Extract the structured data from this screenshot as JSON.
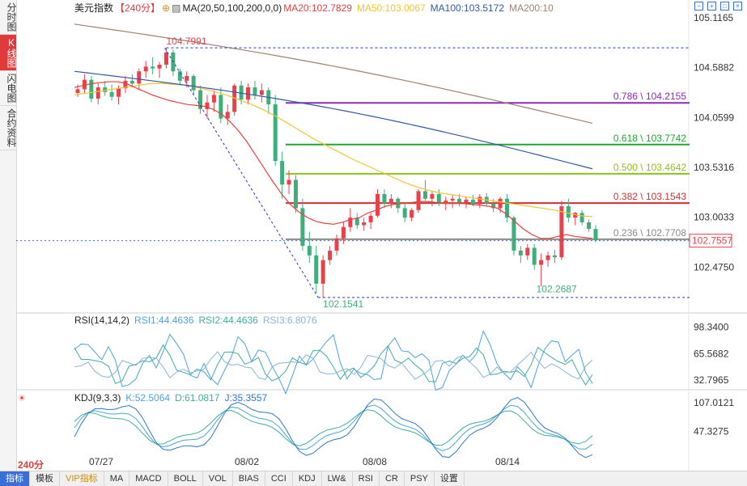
{
  "sidebar": {
    "tabs": [
      "分时图",
      "K线图",
      "闪电图",
      "合约资料"
    ],
    "active": 1
  },
  "header": {
    "symbol": "美元指数",
    "period_tag": "【240分】",
    "ma_label": "MA(20,50,100,200,0,0)",
    "ma20": "MA20:102.7829",
    "ma50": "MA50:103.0067",
    "ma100": "MA100:103.5172",
    "ma200": "MA200:10",
    "colors": {
      "ma20": "#e8413f",
      "ma50": "#f4c430",
      "ma100": "#2f5aa8",
      "ma200": "#a08070"
    }
  },
  "rsi_header": {
    "name": "RSI(14,14,2)",
    "rsi1": "RSI1:44.4636",
    "rsi2": "RSI2:44.4636",
    "rsi3": "RSI3:6.8076"
  },
  "kdj_header": {
    "name": "KDJ(9,3,3)",
    "k": "K:52.5064",
    "d": "D:61.0817",
    "j": "J:35.3557"
  },
  "period_button": "240分",
  "bottom_tabs": [
    "指标",
    "模板",
    "VIP指标",
    "MA",
    "MACD",
    "BOLL",
    "VOL",
    "BIAS",
    "CCI",
    "KDJ",
    "LW&",
    "RSI",
    "CR",
    "PSY",
    "设置"
  ],
  "active_bottom_tab": 0,
  "chart_data": [
    {
      "type": "candlestick",
      "title": "美元指数 240分",
      "y_ticks": [
        "105.1165",
        "104.5882",
        "104.0599",
        "103.5316",
        "103.0033",
        "102.4750"
      ],
      "ylim": [
        102.05,
        105.22
      ],
      "x_labels": [
        "07/27",
        "08/02",
        "08/08",
        "08/14"
      ],
      "last_price": "102.7557",
      "high_label": "104.7991",
      "low_label": "102.1541",
      "low2_label": "102.2687",
      "fib_levels": [
        {
          "label": "0.786 \\ 104.2155",
          "value": 104.2155,
          "color": "#8e2bb5"
        },
        {
          "label": "0.618 \\ 103.7742",
          "value": 103.7742,
          "color": "#1ea830"
        },
        {
          "label": "0.500 \\ 103.4642",
          "value": 103.4642,
          "color": "#8cc21a"
        },
        {
          "label": "0.382 \\ 103.1543",
          "value": 103.1543,
          "color": "#d03030"
        },
        {
          "label": "0.236 \\ 102.7708",
          "value": 102.7708,
          "color": "#8a8a8a"
        }
      ],
      "candles": [
        [
          104.32,
          104.41,
          104.28,
          104.36
        ],
        [
          104.36,
          104.52,
          104.31,
          104.46
        ],
        [
          104.46,
          104.5,
          104.22,
          104.26
        ],
        [
          104.26,
          104.42,
          104.2,
          104.38
        ],
        [
          104.38,
          104.45,
          104.29,
          104.33
        ],
        [
          104.33,
          104.41,
          104.24,
          104.28
        ],
        [
          104.28,
          104.4,
          104.2,
          104.37
        ],
        [
          104.37,
          104.5,
          104.32,
          104.45
        ],
        [
          104.45,
          104.52,
          104.38,
          104.42
        ],
        [
          104.42,
          104.58,
          104.35,
          104.55
        ],
        [
          104.55,
          104.66,
          104.48,
          104.6
        ],
        [
          104.6,
          104.7,
          104.52,
          104.58
        ],
        [
          104.58,
          104.65,
          104.48,
          104.62
        ],
        [
          104.62,
          104.8,
          104.58,
          104.75
        ],
        [
          104.75,
          104.78,
          104.5,
          104.55
        ],
        [
          104.55,
          104.58,
          104.4,
          104.45
        ],
        [
          104.45,
          104.55,
          104.38,
          104.5
        ],
        [
          104.5,
          104.52,
          104.3,
          104.35
        ],
        [
          104.35,
          104.4,
          104.1,
          104.15
        ],
        [
          104.15,
          104.3,
          104.05,
          104.22
        ],
        [
          104.22,
          104.35,
          104.12,
          104.3
        ],
        [
          104.3,
          104.38,
          104.0,
          104.05
        ],
        [
          104.05,
          104.2,
          103.98,
          104.12
        ],
        [
          104.12,
          104.42,
          104.08,
          104.4
        ],
        [
          104.4,
          104.45,
          104.2,
          104.25
        ],
        [
          104.25,
          104.42,
          104.2,
          104.38
        ],
        [
          104.38,
          104.45,
          104.25,
          104.3
        ],
        [
          104.3,
          104.42,
          104.22,
          104.35
        ],
        [
          104.35,
          104.38,
          104.1,
          104.2
        ],
        [
          104.2,
          104.3,
          103.55,
          103.6
        ],
        [
          103.6,
          103.7,
          103.2,
          103.35
        ],
        [
          103.35,
          103.5,
          103.25,
          103.4
        ],
        [
          103.4,
          103.45,
          103.05,
          103.1
        ],
        [
          103.1,
          103.2,
          102.65,
          102.7
        ],
        [
          102.7,
          102.85,
          102.52,
          102.6
        ],
        [
          102.6,
          102.7,
          102.2,
          102.3
        ],
        [
          102.3,
          102.6,
          102.15,
          102.55
        ],
        [
          102.55,
          102.7,
          102.5,
          102.65
        ],
        [
          102.65,
          102.82,
          102.6,
          102.78
        ],
        [
          102.78,
          102.95,
          102.72,
          102.9
        ],
        [
          102.9,
          103.1,
          102.85,
          103.0
        ],
        [
          103.0,
          103.05,
          102.88,
          102.92
        ],
        [
          102.92,
          103.0,
          102.86,
          102.95
        ],
        [
          102.95,
          103.05,
          102.88,
          103.02
        ],
        [
          103.02,
          103.3,
          103.0,
          103.25
        ],
        [
          103.25,
          103.3,
          103.1,
          103.15
        ],
        [
          103.15,
          103.25,
          103.1,
          103.2
        ],
        [
          103.2,
          103.22,
          103.05,
          103.1
        ],
        [
          103.1,
          103.15,
          102.95,
          103.0
        ],
        [
          103.0,
          103.1,
          102.96,
          103.08
        ],
        [
          103.08,
          103.3,
          103.05,
          103.28
        ],
        [
          103.28,
          103.4,
          103.18,
          103.2
        ],
        [
          103.2,
          103.28,
          103.12,
          103.25
        ],
        [
          103.25,
          103.3,
          103.12,
          103.15
        ],
        [
          103.15,
          103.22,
          103.08,
          103.18
        ],
        [
          103.18,
          103.24,
          103.1,
          103.2
        ],
        [
          103.2,
          103.25,
          103.12,
          103.16
        ],
        [
          103.16,
          103.22,
          103.1,
          103.19
        ],
        [
          103.19,
          103.24,
          103.12,
          103.14
        ],
        [
          103.14,
          103.25,
          103.1,
          103.22
        ],
        [
          103.22,
          103.26,
          103.12,
          103.15
        ],
        [
          103.15,
          103.2,
          103.06,
          103.1
        ],
        [
          103.1,
          103.22,
          103.05,
          103.2
        ],
        [
          103.2,
          103.25,
          102.95,
          103.0
        ],
        [
          103.0,
          103.02,
          102.6,
          102.65
        ],
        [
          102.65,
          102.7,
          102.52,
          102.6
        ],
        [
          102.6,
          102.72,
          102.55,
          102.68
        ],
        [
          102.68,
          102.72,
          102.45,
          102.5
        ],
        [
          102.5,
          102.62,
          102.27,
          102.55
        ],
        [
          102.55,
          102.64,
          102.48,
          102.6
        ],
        [
          102.6,
          102.66,
          102.52,
          102.58
        ],
        [
          102.58,
          103.18,
          102.55,
          103.12
        ],
        [
          103.12,
          103.2,
          102.95,
          103.0
        ],
        [
          103.0,
          103.06,
          102.92,
          103.05
        ],
        [
          103.05,
          103.08,
          102.92,
          102.95
        ],
        [
          102.95,
          102.98,
          102.85,
          102.88
        ],
        [
          102.88,
          102.92,
          102.74,
          102.76
        ]
      ],
      "ma_series": {
        "ma20": [
          104.38,
          104.4,
          104.42,
          104.43,
          104.44,
          104.44,
          104.42,
          104.38,
          104.34,
          104.3,
          104.27,
          104.24,
          104.22,
          104.2,
          104.19,
          104.18,
          104.15,
          104.1,
          104.02,
          103.92,
          103.8,
          103.66,
          103.52,
          103.38,
          103.25,
          103.14,
          103.06,
          103.0,
          102.96,
          102.94,
          102.93,
          102.95,
          102.98,
          103.0,
          103.05,
          103.08,
          103.12,
          103.14,
          103.15,
          103.16,
          103.17,
          103.17,
          103.16,
          103.15,
          103.15,
          103.15,
          103.14,
          103.13,
          103.12,
          103.1,
          103.04,
          102.96,
          102.88,
          102.82,
          102.78,
          102.78,
          102.8,
          102.82,
          102.8,
          102.79,
          102.78
        ],
        "ma50": [
          104.3,
          104.32,
          104.34,
          104.36,
          104.38,
          104.4,
          104.42,
          104.42,
          104.41,
          104.4,
          104.37,
          104.34,
          104.3,
          104.25,
          104.2,
          104.14,
          104.07,
          103.99,
          103.91,
          103.83,
          103.76,
          103.69,
          103.62,
          103.56,
          103.5,
          103.44,
          103.38,
          103.33,
          103.29,
          103.26,
          103.24,
          103.22,
          103.2,
          103.18,
          103.16,
          103.14,
          103.12,
          103.1,
          103.08,
          103.05,
          103.02,
          103.01
        ]
      },
      "ma100_range": [
        104.55,
        103.5172
      ],
      "ma200_range": [
        105.05,
        104.0
      ]
    },
    {
      "type": "line",
      "title": "RSI(14,14,2)",
      "y_ticks": [
        "98.3400",
        "65.5682",
        "32.7965"
      ],
      "ylim": [
        15,
        105
      ],
      "series": [
        {
          "name": "RSI1",
          "color": "#4aa3df"
        },
        {
          "name": "RSI2",
          "color": "#3fae9b"
        },
        {
          "name": "RSI3",
          "color": "#8ab4d8"
        }
      ]
    },
    {
      "type": "line",
      "title": "KDJ(9,3,3)",
      "y_ticks": [
        "107.0121",
        "47.3275"
      ],
      "ylim": [
        0,
        120
      ],
      "series": [
        {
          "name": "K",
          "color": "#4aa3df"
        },
        {
          "name": "D",
          "color": "#3fae9b"
        },
        {
          "name": "J",
          "color": "#2f78c8"
        }
      ]
    }
  ]
}
